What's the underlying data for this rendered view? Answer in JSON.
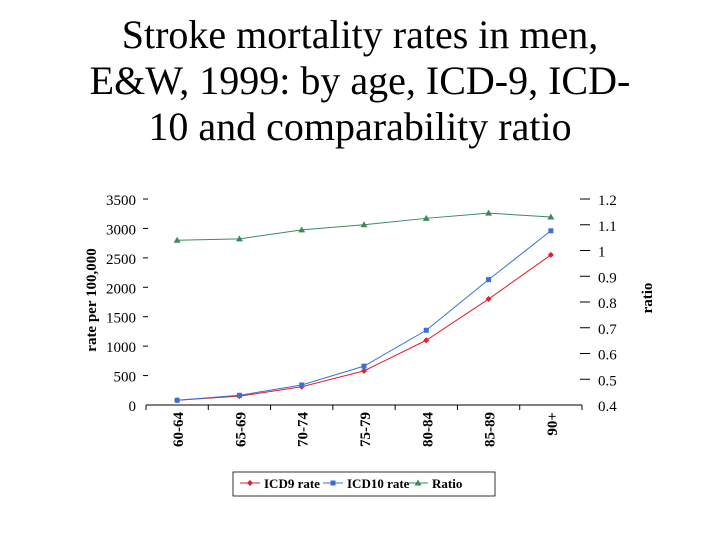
{
  "slide": {
    "title_lines": [
      "Stroke mortality rates in men,",
      "E&W, 1999: by age, ICD-9, ICD-",
      "10 and comparability ratio"
    ]
  },
  "chart_data": {
    "type": "line",
    "title": "Stroke mortality rates in men, E&W, 1999: by age, ICD-9, ICD-10 and comparability ratio",
    "categories": [
      "60-64",
      "65-69",
      "70-74",
      "75-79",
      "80-84",
      "85-89",
      "90+"
    ],
    "series": [
      {
        "name": "ICD9 rate",
        "axis": "left",
        "color": "#e0202a",
        "marker": "diamond",
        "values": [
          80,
          150,
          310,
          580,
          1100,
          1800,
          2550
        ]
      },
      {
        "name": "ICD10 rate",
        "axis": "left",
        "color": "#3a6fd8",
        "marker": "square",
        "values": [
          80,
          165,
          340,
          660,
          1270,
          2130,
          2960
        ]
      },
      {
        "name": "Ratio",
        "axis": "right",
        "color": "#3d8a5e",
        "marker": "triangle",
        "values": [
          1.04,
          1.045,
          1.08,
          1.1,
          1.125,
          1.145,
          1.13
        ]
      }
    ],
    "ylabel": "rate per 100,000",
    "y2label": "ratio",
    "ylim": [
      0,
      3500
    ],
    "y2lim": [
      0.4,
      1.2
    ],
    "yticks": [
      "0",
      "500",
      "1000",
      "1500",
      "2000",
      "2500",
      "3000",
      "3500"
    ],
    "y2ticks": [
      "0.4",
      "0.5",
      "0.6",
      "0.7",
      "0.8",
      "0.9",
      "1",
      "1.1",
      "1.2"
    ],
    "legend_position": "bottom",
    "grid": false
  }
}
